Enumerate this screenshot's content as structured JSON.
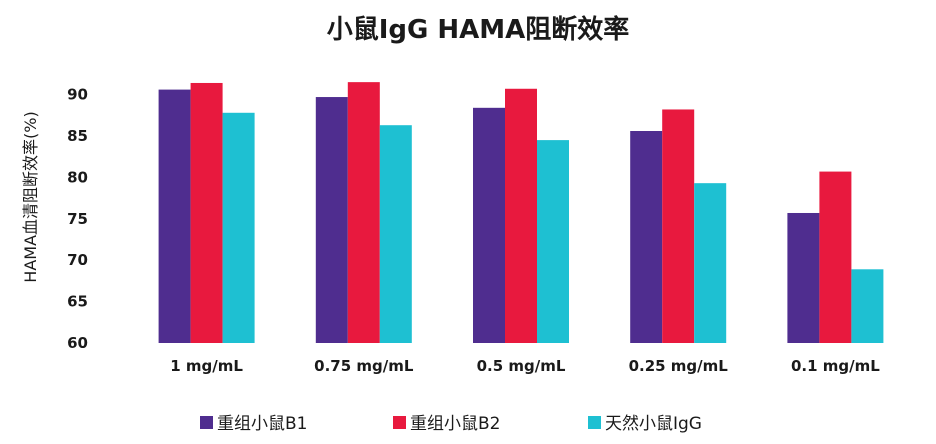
{
  "chart_data": {
    "type": "bar",
    "title": "小鼠IgG HAMA阻断效率",
    "xlabel": "",
    "ylabel": "HAMA血清阻断效率(%)",
    "ylim": [
      60,
      92
    ],
    "yticks": [
      "60",
      "65",
      "70",
      "75",
      "80",
      "85",
      "90"
    ],
    "categories": [
      "1 mg/mL",
      "0.75 mg/mL",
      "0.5 mg/mL",
      "0.25 mg/mL",
      "0.1 mg/mL"
    ],
    "series": [
      {
        "name": "重组小鼠B1",
        "color": "#4f2d8f",
        "values": [
          90.6,
          89.7,
          88.4,
          85.6,
          75.7
        ]
      },
      {
        "name": "重组小鼠B2",
        "color": "#e8193e",
        "values": [
          91.4,
          91.5,
          90.7,
          88.2,
          80.7
        ]
      },
      {
        "name": "天然小鼠IgG",
        "color": "#1ec0d2",
        "values": [
          87.8,
          86.3,
          84.5,
          79.3,
          68.9
        ]
      }
    ],
    "grid": false,
    "legend": "bottom"
  }
}
